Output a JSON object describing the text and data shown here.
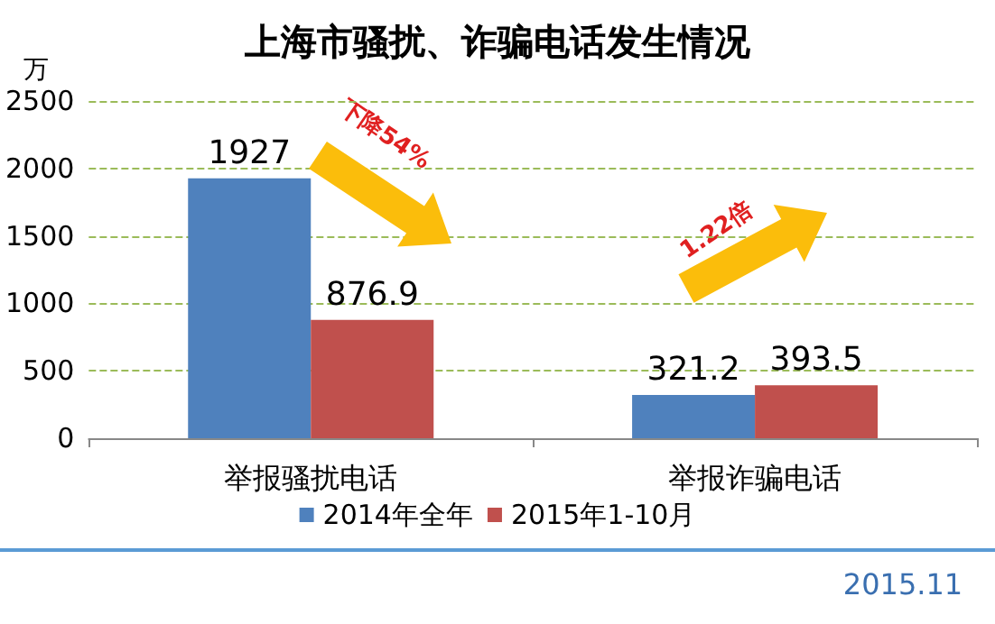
{
  "chart_data": {
    "type": "bar",
    "title": "上海市骚扰、诈骗电话发生情况",
    "ylabel": "万",
    "categories": [
      "举报骚扰电话",
      "举报诈骗电话"
    ],
    "series": [
      {
        "name": "2014年全年",
        "color": "#4f81bd",
        "values": [
          1927,
          321.2
        ]
      },
      {
        "name": "2015年1-10月",
        "color": "#c0504d",
        "values": [
          876.9,
          393.5
        ]
      }
    ],
    "ylim": [
      0,
      2500
    ],
    "yticks": [
      0,
      500,
      1000,
      1500,
      2000,
      2500
    ],
    "grid": "y",
    "legend": "bottom",
    "data_labels": true,
    "annotations": [
      "下降54%",
      "1.22倍",
      "2015.11"
    ]
  }
}
